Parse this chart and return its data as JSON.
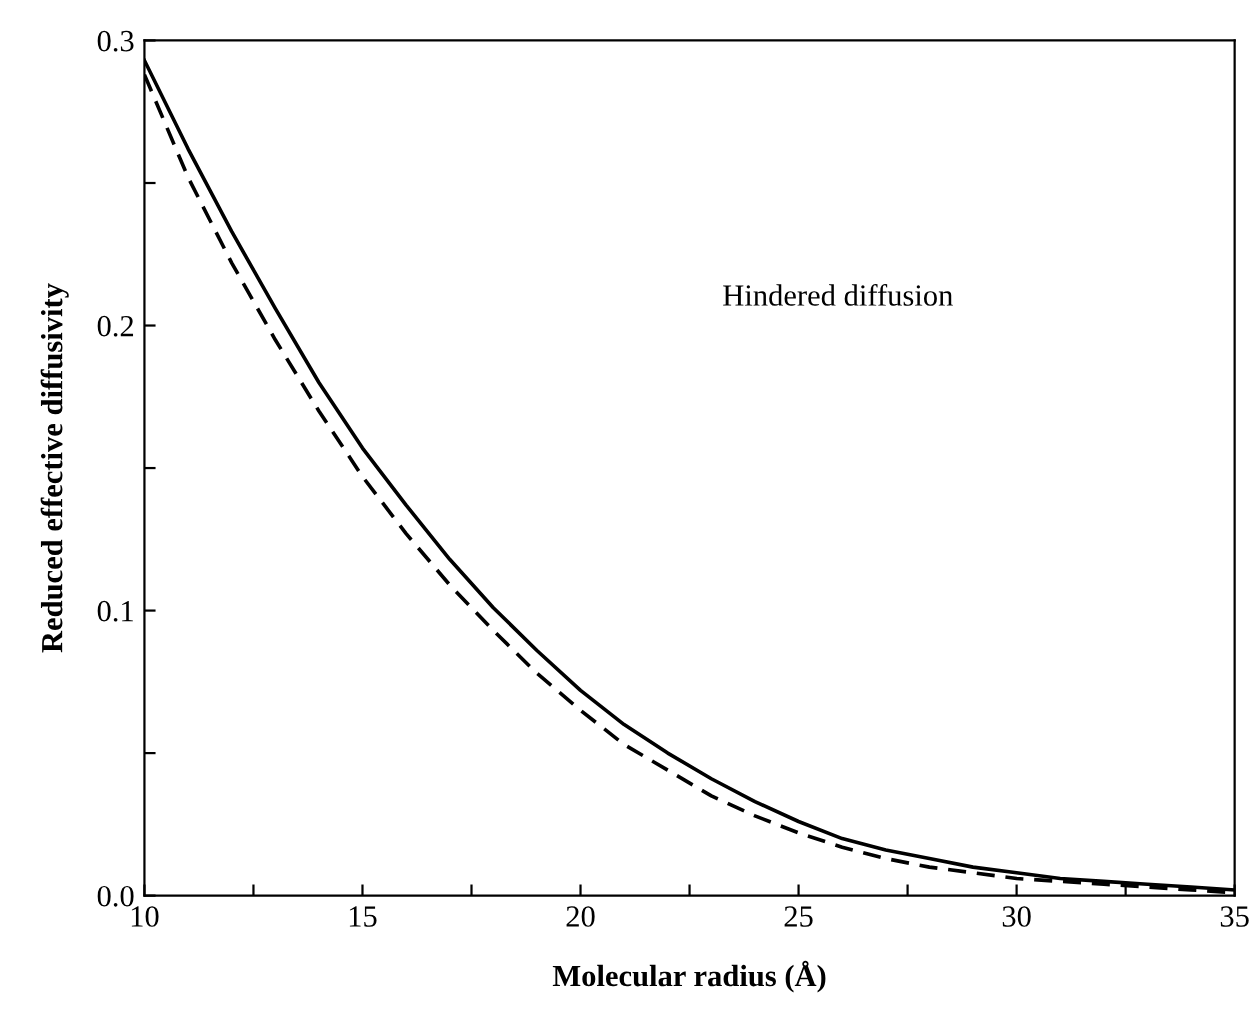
{
  "chart_data": {
    "type": "line",
    "xlabel": "Molecular radius (Å)",
    "ylabel": "Reduced effective diffusivity",
    "annotations": [
      "Hindered diffusion"
    ],
    "x": [
      10,
      11,
      12,
      13,
      14,
      15,
      16,
      17,
      18,
      19,
      20,
      21,
      22,
      23,
      24,
      25,
      26,
      27,
      28,
      29,
      30,
      31,
      32,
      33,
      34,
      35
    ],
    "series": [
      {
        "color": "#000000",
        "line_style": "solid",
        "values": [
          0.293,
          0.262,
          0.233,
          0.206,
          0.18,
          0.157,
          0.137,
          0.118,
          0.101,
          0.086,
          0.072,
          0.06,
          0.05,
          0.041,
          0.033,
          0.026,
          0.02,
          0.016,
          0.013,
          0.01,
          0.008,
          0.006,
          0.005,
          0.004,
          0.003,
          0.002
        ]
      },
      {
        "color": "#000000",
        "line_style": "dashed",
        "values": [
          0.288,
          0.252,
          0.222,
          0.195,
          0.17,
          0.147,
          0.127,
          0.109,
          0.093,
          0.078,
          0.065,
          0.053,
          0.044,
          0.035,
          0.028,
          0.022,
          0.017,
          0.013,
          0.01,
          0.008,
          0.006,
          0.005,
          0.004,
          0.003,
          0.002,
          0.001
        ]
      }
    ],
    "xlim": [
      10,
      35
    ],
    "ylim": [
      0.0,
      0.3
    ],
    "xticks": [
      10,
      {
        "value": 12.5,
        "label": null
      },
      15,
      {
        "value": 17.5,
        "label": null
      },
      20,
      {
        "value": 22.5,
        "label": null
      },
      25,
      {
        "value": 27.5,
        "label": null
      },
      30,
      {
        "value": 32.5,
        "label": null
      },
      35
    ],
    "yticks": [
      {
        "value": 0.0,
        "label": "0.0"
      },
      {
        "value": 0.05,
        "label": null
      },
      {
        "value": 0.1,
        "label": "0.1"
      },
      {
        "value": 0.15,
        "label": null
      },
      {
        "value": 0.2,
        "label": "0.2"
      },
      {
        "value": 0.25,
        "label": null
      },
      {
        "value": 0.3,
        "label": "0.3"
      }
    ],
    "grid": false,
    "legend": false,
    "marker": "none"
  }
}
